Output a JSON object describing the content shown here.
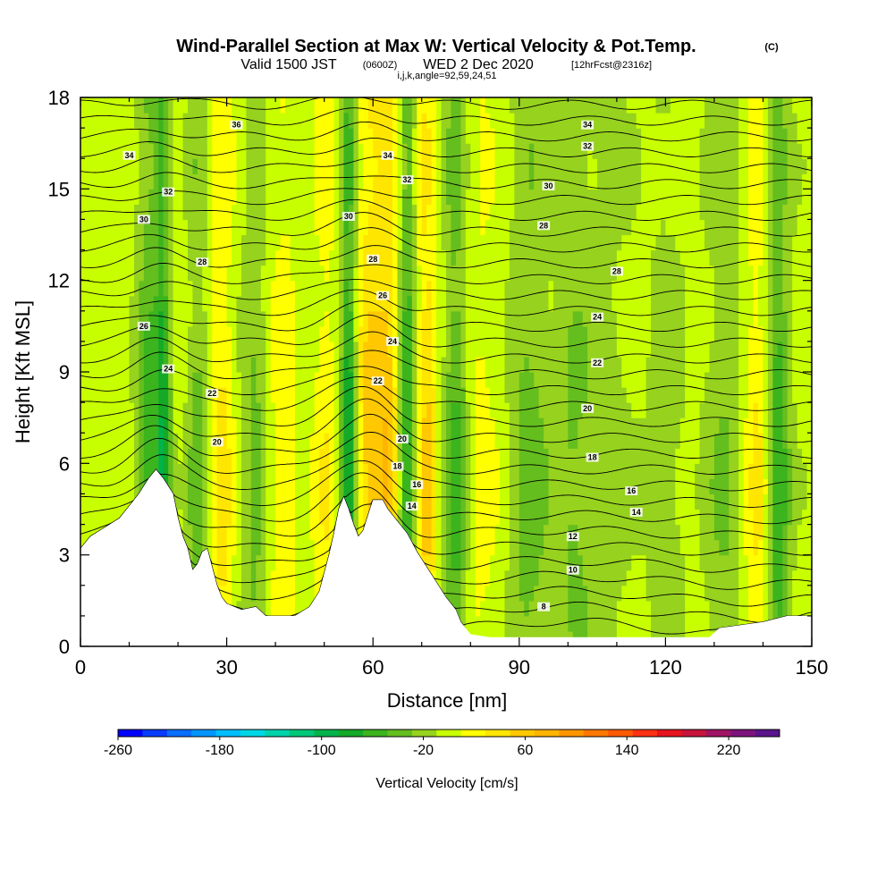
{
  "title": {
    "main": "Wind-Parallel Section at Max W: Vertical Velocity & Pot.Temp.",
    "main_unit": "(C)",
    "subtitle_valid": "Valid 1500 JST",
    "subtitle_utc": "(0600Z)",
    "subtitle_date": "WED 2 Dec 2020",
    "subtitle_fcst": "[12hrFcst@2316z]",
    "subtitle_ijk": "i,j,k,angle=92,59,24,51"
  },
  "chart_data": {
    "type": "heatmap",
    "xlabel": "Distance [nm]",
    "ylabel": "Height [Kft MSL]",
    "xlim": [
      0,
      150
    ],
    "ylim": [
      0,
      18
    ],
    "xticks": [
      0,
      30,
      60,
      90,
      120,
      150
    ],
    "yticks": [
      0,
      3,
      6,
      9,
      12,
      15,
      18
    ],
    "colorbar": {
      "label": "Vertical Velocity [cm/s]",
      "range": [
        -260,
        260
      ],
      "step": 20,
      "ticks": [
        -260,
        -180,
        -100,
        -20,
        60,
        140,
        220
      ],
      "colors": [
        "#0000ff",
        "#0a3cff",
        "#0a6eff",
        "#0096ff",
        "#00beff",
        "#00d7e6",
        "#00d2aa",
        "#00c878",
        "#00b44b",
        "#14aa28",
        "#3cb41e",
        "#64be1e",
        "#96d21e",
        "#c8ff00",
        "#ffff00",
        "#ffe600",
        "#ffc800",
        "#ffb400",
        "#ff9600",
        "#ff7800",
        "#ff5a00",
        "#ff3214",
        "#e6141e",
        "#c8143c",
        "#a01464",
        "#7d147d",
        "#5a148c"
      ]
    },
    "terrain": [
      [
        0,
        3.2
      ],
      [
        2,
        3.6
      ],
      [
        4,
        3.8
      ],
      [
        6,
        4
      ],
      [
        8,
        4.2
      ],
      [
        10,
        4.6
      ],
      [
        12,
        5
      ],
      [
        14,
        5.5
      ],
      [
        15.5,
        5.8
      ],
      [
        17,
        5.5
      ],
      [
        19,
        5
      ],
      [
        20,
        4.2
      ],
      [
        21,
        3.6
      ],
      [
        22,
        3.2
      ],
      [
        23,
        2.5
      ],
      [
        24,
        2.7
      ],
      [
        25,
        3.1
      ],
      [
        26,
        3.2
      ],
      [
        27,
        2.6
      ],
      [
        28,
        2
      ],
      [
        29,
        1.6
      ],
      [
        30,
        1.4
      ],
      [
        33,
        1.2
      ],
      [
        36,
        1.3
      ],
      [
        38,
        1
      ],
      [
        40,
        1
      ],
      [
        44,
        1
      ],
      [
        47,
        1.3
      ],
      [
        49,
        1.8
      ],
      [
        50,
        2.4
      ],
      [
        51,
        3
      ],
      [
        52,
        3.7
      ],
      [
        53,
        4.5
      ],
      [
        54,
        4.9
      ],
      [
        55,
        4.5
      ],
      [
        56,
        4
      ],
      [
        57,
        3.6
      ],
      [
        58,
        3.8
      ],
      [
        59,
        4.3
      ],
      [
        60,
        4.8
      ],
      [
        62,
        4.8
      ],
      [
        63,
        4.5
      ],
      [
        65,
        4.1
      ],
      [
        67,
        3.7
      ],
      [
        69,
        3.1
      ],
      [
        71,
        2.6
      ],
      [
        73,
        2.1
      ],
      [
        75,
        1.6
      ],
      [
        77,
        1.2
      ],
      [
        78,
        0.8
      ],
      [
        80,
        0.4
      ],
      [
        84,
        0.3
      ],
      [
        90,
        0.3
      ],
      [
        100,
        0.3
      ],
      [
        110,
        0.3
      ],
      [
        120,
        0.3
      ],
      [
        129,
        0.3
      ],
      [
        131,
        0.6
      ],
      [
        140,
        0.8
      ],
      [
        145,
        1
      ],
      [
        150,
        1
      ]
    ],
    "updrafts": [
      {
        "x": 14,
        "w": 2.5,
        "v": -60
      },
      {
        "x": 17,
        "w": 1.5,
        "v": -80
      },
      {
        "x": 24,
        "w": 2,
        "v": -40
      },
      {
        "x": 29,
        "w": 2.5,
        "v": 40
      },
      {
        "x": 36,
        "w": 3,
        "v": -40
      },
      {
        "x": 42,
        "w": 5,
        "v": 30
      },
      {
        "x": 46,
        "w": 3,
        "v": -20
      },
      {
        "x": 50,
        "w": 3,
        "v": 30
      },
      {
        "x": 55,
        "w": 1.6,
        "v": -100
      },
      {
        "x": 59,
        "w": 2.5,
        "v": 60
      },
      {
        "x": 63,
        "w": 2.5,
        "v": 70
      },
      {
        "x": 67,
        "w": 1.8,
        "v": -80
      },
      {
        "x": 71,
        "w": 2.2,
        "v": 60
      },
      {
        "x": 77,
        "w": 2.5,
        "v": -60
      },
      {
        "x": 82,
        "w": 4,
        "v": 20
      },
      {
        "x": 92,
        "w": 4,
        "v": -40
      },
      {
        "x": 101,
        "w": 4,
        "v": -30
      },
      {
        "x": 108,
        "w": 5,
        "v": -20
      },
      {
        "x": 120,
        "w": 4,
        "v": -20
      },
      {
        "x": 132,
        "w": 4,
        "v": -30
      },
      {
        "x": 139,
        "w": 3,
        "v": 40
      },
      {
        "x": 143,
        "w": 2.5,
        "v": -70
      }
    ],
    "contour_labels": [
      {
        "text": "36",
        "x": 32,
        "y": 17.1
      },
      {
        "text": "34",
        "x": 10,
        "y": 16.1
      },
      {
        "text": "34",
        "x": 63,
        "y": 16.1
      },
      {
        "text": "34",
        "x": 104,
        "y": 17.1
      },
      {
        "text": "32",
        "x": 18,
        "y": 14.9
      },
      {
        "text": "32",
        "x": 67,
        "y": 15.3
      },
      {
        "text": "32",
        "x": 104,
        "y": 16.4
      },
      {
        "text": "30",
        "x": 13,
        "y": 14
      },
      {
        "text": "30",
        "x": 55,
        "y": 14.1
      },
      {
        "text": "30",
        "x": 96,
        "y": 15.1
      },
      {
        "text": "28",
        "x": 25,
        "y": 12.6
      },
      {
        "text": "28",
        "x": 60,
        "y": 12.7
      },
      {
        "text": "28",
        "x": 95,
        "y": 13.8
      },
      {
        "text": "28",
        "x": 110,
        "y": 12.3
      },
      {
        "text": "26",
        "x": 13,
        "y": 10.5
      },
      {
        "text": "26",
        "x": 62,
        "y": 11.5
      },
      {
        "text": "24",
        "x": 18,
        "y": 9.1
      },
      {
        "text": "24",
        "x": 64,
        "y": 10
      },
      {
        "text": "24",
        "x": 106,
        "y": 10.8
      },
      {
        "text": "22",
        "x": 27,
        "y": 8.3
      },
      {
        "text": "22",
        "x": 61,
        "y": 8.7
      },
      {
        "text": "22",
        "x": 106,
        "y": 9.3
      },
      {
        "text": "20",
        "x": 28,
        "y": 6.7
      },
      {
        "text": "20",
        "x": 66,
        "y": 6.8
      },
      {
        "text": "20",
        "x": 104,
        "y": 7.8
      },
      {
        "text": "18",
        "x": 65,
        "y": 5.9
      },
      {
        "text": "18",
        "x": 105,
        "y": 6.2
      },
      {
        "text": "16",
        "x": 69,
        "y": 5.3
      },
      {
        "text": "16",
        "x": 113,
        "y": 5.1
      },
      {
        "text": "14",
        "x": 68,
        "y": 4.6
      },
      {
        "text": "14",
        "x": 114,
        "y": 4.4
      },
      {
        "text": "12",
        "x": 101,
        "y": 3.6
      },
      {
        "text": "10",
        "x": 101,
        "y": 2.5
      },
      {
        "text": "8",
        "x": 95,
        "y": 1.3
      }
    ]
  }
}
